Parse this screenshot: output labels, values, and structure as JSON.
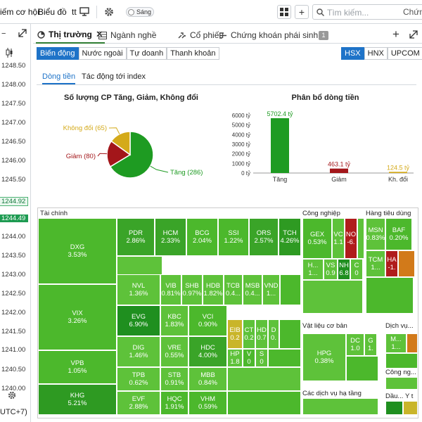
{
  "topbar": {
    "menu1": "iếm cơ hội",
    "menu2": "Biểu đồ",
    "menu3": "tt",
    "theme_label": "Sáng",
    "search_placeholder": "Tìm kiếm...",
    "right_text": "Chứng"
  },
  "left_prices": [
    {
      "v": "1248.50"
    },
    {
      "v": "1248.00"
    },
    {
      "v": "1247.50"
    },
    {
      "v": "1247.00"
    },
    {
      "v": "1246.50"
    },
    {
      "v": "1246.00"
    },
    {
      "v": "1245.50"
    },
    {
      "v": "1244.92"
    },
    {
      "v": "1244.49"
    },
    {
      "v": "1244.00"
    },
    {
      "v": "1243.50"
    },
    {
      "v": "1243.00"
    },
    {
      "v": "1242.50"
    },
    {
      "v": "1242.00"
    },
    {
      "v": "1241.50"
    },
    {
      "v": "1241.00"
    },
    {
      "v": "1240.50"
    },
    {
      "v": "1240.00"
    }
  ],
  "left_footer": "UTC+7)",
  "tabs": {
    "t1": "Thị trường",
    "t2": "Ngành nghề",
    "t3": "Cổ phiếu",
    "t4": "Chứng khoán phái sinh",
    "badge": "1"
  },
  "subtabs": [
    "Biến động",
    "Nước ngoài",
    "Tự doanh",
    "Thanh khoản"
  ],
  "exchanges": [
    "HSX",
    "HNX",
    "UPCOM"
  ],
  "innertabs": {
    "a": "Dòng tiền",
    "b": "Tác động tới index"
  },
  "colors": {
    "up": "#1e9b22",
    "down": "#b01c1c",
    "flat": "#d4aa1a",
    "accent": "#1e73c8"
  },
  "chart_data": [
    {
      "type": "pie",
      "title": "Số lượng CP Tăng, Giảm, Không đổi",
      "slices": [
        {
          "label": "Tăng (286)",
          "value": 286,
          "color": "#1e9b22"
        },
        {
          "label": "Giảm (80)",
          "value": 80,
          "color": "#a3161a"
        },
        {
          "label": "Không đổi (65)",
          "value": 65,
          "color": "#d4aa1a"
        }
      ]
    },
    {
      "type": "bar",
      "title": "Phân bổ dòng tiền",
      "categories": [
        "Tăng",
        "Giảm",
        "Kh. đổi"
      ],
      "values": [
        5702.4,
        463.1,
        124.5
      ],
      "labels": [
        "5702.4 tỷ",
        "463.1 tỷ",
        "124.5 tỷ"
      ],
      "colors": [
        "#1e9b22",
        "#a3161a",
        "#d4aa1a"
      ],
      "ylim": [
        0,
        6000
      ],
      "yticks": [
        "0 tỷ",
        "1000 tỷ",
        "2000 tỷ",
        "3000 tỷ",
        "4000 tỷ",
        "5000 tỷ",
        "6000 tỷ"
      ]
    }
  ],
  "treemap": {
    "sections": {
      "finance": "Tài chính",
      "industry": "Công nghiệp",
      "consumer": "Hàng tiêu dùng",
      "materials": "Vật liệu cơ bản",
      "services": "Dịch vụ...",
      "tech": "Công ng...",
      "infra": "Các dịch vụ hạ tầng",
      "oil": "Dầu...",
      "health": "Y t"
    },
    "tiles": [
      {
        "name": "DXG",
        "pct": "3.53%"
      },
      {
        "name": "VIX",
        "pct": "3.26%"
      },
      {
        "name": "VPB",
        "pct": "1.05%"
      },
      {
        "name": "KHG",
        "pct": "5.21%"
      },
      {
        "name": "PDR",
        "pct": "2.86%"
      },
      {
        "name": "HCM",
        "pct": "2.33%"
      },
      {
        "name": "BCG",
        "pct": "2.04%"
      },
      {
        "name": "SSI",
        "pct": "1.22%"
      },
      {
        "name": "ORS",
        "pct": "2.57%"
      },
      {
        "name": "TCH",
        "pct": "4.26%"
      },
      {
        "name": "NVL",
        "pct": "1.36%"
      },
      {
        "name": "VIB",
        "pct": "0.81%"
      },
      {
        "name": "SHB",
        "pct": "0.97%"
      },
      {
        "name": "HDB",
        "pct": "1.82%"
      },
      {
        "name": "TCB",
        "pct": "0.4..."
      },
      {
        "name": "MSB",
        "pct": "0.4..."
      },
      {
        "name": "VND",
        "pct": "1..."
      },
      {
        "name": "EVG",
        "pct": "6.90%"
      },
      {
        "name": "KBC",
        "pct": "1.83%"
      },
      {
        "name": "VCI",
        "pct": "0.90%"
      },
      {
        "name": "EIB",
        "pct": "0.2"
      },
      {
        "name": "CT",
        "pct": "0.2"
      },
      {
        "name": "HD",
        "pct": "0.7"
      },
      {
        "name": "D",
        "pct": "0."
      },
      {
        "name": "DIG",
        "pct": "1.46%"
      },
      {
        "name": "VRE",
        "pct": "0.55%"
      },
      {
        "name": "HDC",
        "pct": "4.00%"
      },
      {
        "name": "HP",
        "pct": "1.8"
      },
      {
        "name": "V",
        "pct": "0"
      },
      {
        "name": "S",
        "pct": "0"
      },
      {
        "name": "TPB",
        "pct": "0.62%"
      },
      {
        "name": "STB",
        "pct": "0.91%"
      },
      {
        "name": "MBB",
        "pct": "0.84%"
      },
      {
        "name": "VHM",
        "pct": "0.59%"
      },
      {
        "name": "EVF",
        "pct": "2.88%"
      },
      {
        "name": "HQC",
        "pct": "1.91%"
      },
      {
        "name": "GEX",
        "pct": "0.53%"
      },
      {
        "name": "VC",
        "pct": "1.1"
      },
      {
        "name": "NO",
        "pct": "-6."
      },
      {
        "name": "H...",
        "pct": "1..."
      },
      {
        "name": "VS",
        "pct": "0.9"
      },
      {
        "name": "NH",
        "pct": "6.8"
      },
      {
        "name": "C",
        "pct": "0"
      },
      {
        "name": "MSN",
        "pct": "0.83%"
      },
      {
        "name": "BAF",
        "pct": "0.20%"
      },
      {
        "name": "TCM",
        "pct": "1..."
      },
      {
        "name": "HA",
        "pct": "-1."
      },
      {
        "name": "HPG",
        "pct": "0.38%"
      },
      {
        "name": "DC",
        "pct": "1.0"
      },
      {
        "name": "G",
        "pct": "1."
      },
      {
        "name": "M...",
        "pct": "1..."
      }
    ]
  }
}
